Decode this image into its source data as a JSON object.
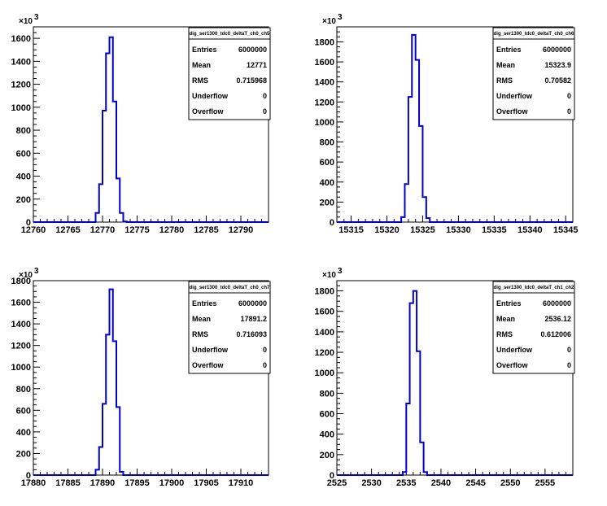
{
  "chart_data": [
    {
      "type": "bar",
      "title": "dig_ser1300_tdc0_deltaT_ch0_ch5",
      "xlim": [
        12760,
        12794
      ],
      "ylim": [
        0,
        1700
      ],
      "xticks": [
        12760,
        12765,
        12770,
        12775,
        12780,
        12785,
        12790
      ],
      "yticks": [
        0,
        200,
        400,
        600,
        800,
        1000,
        1200,
        1400,
        1600
      ],
      "y_exponent": "×10",
      "y_exponent_power": "3",
      "bins": [
        {
          "x0": 12769.0,
          "x1": 12769.5,
          "y": 80
        },
        {
          "x0": 12769.5,
          "x1": 12770.0,
          "y": 330
        },
        {
          "x0": 12770.0,
          "x1": 12770.5,
          "y": 970
        },
        {
          "x0": 12770.5,
          "x1": 12771.0,
          "y": 1470
        },
        {
          "x0": 12771.0,
          "x1": 12771.5,
          "y": 1610
        },
        {
          "x0": 12771.5,
          "x1": 12772.0,
          "y": 1050
        },
        {
          "x0": 12772.0,
          "x1": 12772.5,
          "y": 380
        },
        {
          "x0": 12772.5,
          "x1": 12773.0,
          "y": 80
        },
        {
          "x0": 12773.0,
          "x1": 12773.5,
          "y": 5
        }
      ],
      "stats": [
        {
          "label": "Entries",
          "value": "6000000"
        },
        {
          "label": "Mean",
          "value": "12771"
        },
        {
          "label": "RMS",
          "value": "0.715968"
        },
        {
          "label": "Underflow",
          "value": "0"
        },
        {
          "label": "Overflow",
          "value": "0"
        }
      ]
    },
    {
      "type": "bar",
      "title": "dig_ser1300_tdc0_deltaT_ch0_ch6",
      "xlim": [
        15313,
        15346
      ],
      "ylim": [
        0,
        1950
      ],
      "xticks": [
        15315,
        15320,
        15325,
        15330,
        15335,
        15340,
        15345
      ],
      "yticks": [
        0,
        200,
        400,
        600,
        800,
        1000,
        1200,
        1400,
        1600,
        1800
      ],
      "y_exponent": "×10",
      "y_exponent_power": "3",
      "bins": [
        {
          "x0": 15322.0,
          "x1": 15322.5,
          "y": 50
        },
        {
          "x0": 15322.5,
          "x1": 15323.0,
          "y": 380
        },
        {
          "x0": 15323.0,
          "x1": 15323.5,
          "y": 1250
        },
        {
          "x0": 15323.5,
          "x1": 15324.0,
          "y": 1870
        },
        {
          "x0": 15324.0,
          "x1": 15324.5,
          "y": 1620
        },
        {
          "x0": 15324.5,
          "x1": 15325.0,
          "y": 960
        },
        {
          "x0": 15325.0,
          "x1": 15325.5,
          "y": 250
        },
        {
          "x0": 15325.5,
          "x1": 15326.0,
          "y": 40
        }
      ],
      "stats": [
        {
          "label": "Entries",
          "value": "6000000"
        },
        {
          "label": "Mean",
          "value": "15323.9"
        },
        {
          "label": "RMS",
          "value": "0.70582"
        },
        {
          "label": "Underflow",
          "value": "0"
        },
        {
          "label": "Overflow",
          "value": "0"
        }
      ]
    },
    {
      "type": "bar",
      "title": "dig_ser1300_tdc0_deltaT_ch0_ch7",
      "xlim": [
        17880,
        17914
      ],
      "ylim": [
        0,
        1800
      ],
      "xticks": [
        17880,
        17885,
        17890,
        17895,
        17900,
        17905,
        17910
      ],
      "yticks": [
        0,
        200,
        400,
        600,
        800,
        1000,
        1200,
        1400,
        1600,
        1800
      ],
      "y_exponent": "×10",
      "y_exponent_power": "3",
      "bins": [
        {
          "x0": 17889.0,
          "x1": 17889.5,
          "y": 50
        },
        {
          "x0": 17889.5,
          "x1": 17890.0,
          "y": 260
        },
        {
          "x0": 17890.0,
          "x1": 17890.5,
          "y": 660
        },
        {
          "x0": 17890.5,
          "x1": 17891.0,
          "y": 1300
        },
        {
          "x0": 17891.0,
          "x1": 17891.5,
          "y": 1720
        },
        {
          "x0": 17891.5,
          "x1": 17892.0,
          "y": 1240
        },
        {
          "x0": 17892.0,
          "x1": 17892.5,
          "y": 630
        },
        {
          "x0": 17892.5,
          "x1": 17893.0,
          "y": 30
        }
      ],
      "stats": [
        {
          "label": "Entries",
          "value": "6000000"
        },
        {
          "label": "Mean",
          "value": "17891.2"
        },
        {
          "label": "RMS",
          "value": "0.716093"
        },
        {
          "label": "Underflow",
          "value": "0"
        },
        {
          "label": "Overflow",
          "value": "0"
        }
      ]
    },
    {
      "type": "bar",
      "title": "dig_ser1300_tdc0_deltaT_ch1_ch2",
      "xlim": [
        2525,
        2559
      ],
      "ylim": [
        0,
        1900
      ],
      "xticks": [
        2525,
        2530,
        2535,
        2540,
        2545,
        2550,
        2555
      ],
      "yticks": [
        0,
        200,
        400,
        600,
        800,
        1000,
        1200,
        1400,
        1600,
        1800
      ],
      "y_exponent": "×10",
      "y_exponent_power": "3",
      "bins": [
        {
          "x0": 2534.5,
          "x1": 2535.0,
          "y": 30
        },
        {
          "x0": 2535.0,
          "x1": 2535.5,
          "y": 700
        },
        {
          "x0": 2535.5,
          "x1": 2536.0,
          "y": 1680
        },
        {
          "x0": 2536.0,
          "x1": 2536.5,
          "y": 1800
        },
        {
          "x0": 2536.5,
          "x1": 2537.0,
          "y": 1210
        },
        {
          "x0": 2537.0,
          "x1": 2537.5,
          "y": 320
        },
        {
          "x0": 2537.5,
          "x1": 2538.0,
          "y": 30
        }
      ],
      "stats": [
        {
          "label": "Entries",
          "value": "6000000"
        },
        {
          "label": "Mean",
          "value": "2536.12"
        },
        {
          "label": "RMS",
          "value": "0.612006"
        },
        {
          "label": "Underflow",
          "value": "0"
        },
        {
          "label": "Overflow",
          "value": "0"
        }
      ]
    }
  ],
  "colors": {
    "histogram_line": "#0000cc",
    "frame": "#000000",
    "background": "#ffffff"
  }
}
